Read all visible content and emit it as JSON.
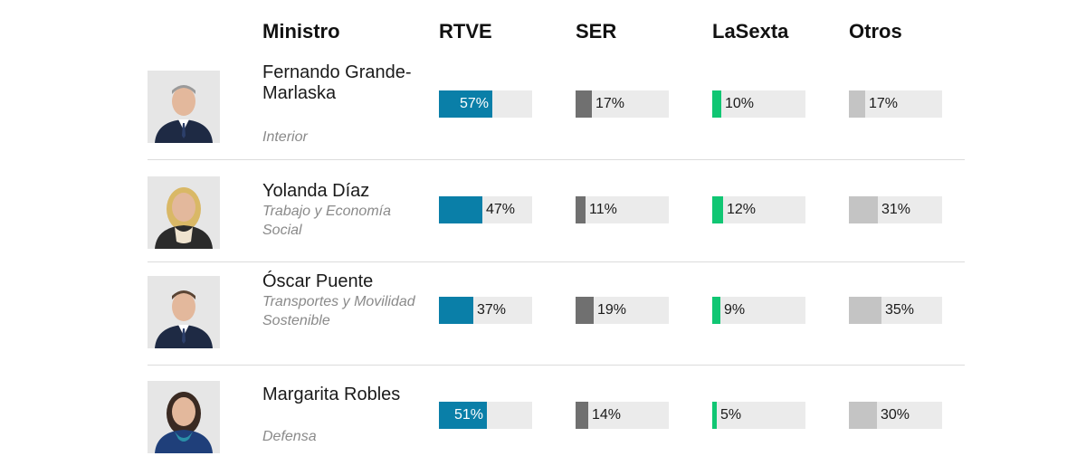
{
  "header": {
    "ministro": "Ministro",
    "columns": [
      "RTVE",
      "SER",
      "LaSexta",
      "Otros"
    ]
  },
  "colors": {
    "RTVE": "#0a7fa8",
    "SER": "#707070",
    "LaSexta": "#10c673",
    "Otros": "#c4c4c4",
    "track": "#ebebeb"
  },
  "ministers": [
    {
      "name": "Fernando Grande-Marlaska",
      "department": "Interior",
      "photo_icon": "man-portrait",
      "shares": {
        "RTVE": 57,
        "SER": 17,
        "LaSexta": 10,
        "Otros": 17
      },
      "labels": {
        "RTVE": "57%",
        "SER": "17%",
        "LaSexta": "10%",
        "Otros": "17%"
      }
    },
    {
      "name": "Yolanda Díaz",
      "department": "Trabajo y Economía Social",
      "photo_icon": "woman-portrait",
      "shares": {
        "RTVE": 47,
        "SER": 11,
        "LaSexta": 12,
        "Otros": 31
      },
      "labels": {
        "RTVE": "47%",
        "SER": "11%",
        "LaSexta": "12%",
        "Otros": "31%"
      }
    },
    {
      "name": "Óscar Puente",
      "department": "Transportes y Movilidad Sostenible",
      "photo_icon": "man-portrait",
      "shares": {
        "RTVE": 37,
        "SER": 19,
        "LaSexta": 9,
        "Otros": 35
      },
      "labels": {
        "RTVE": "37%",
        "SER": "19%",
        "LaSexta": "9%",
        "Otros": "35%"
      }
    },
    {
      "name": "Margarita Robles",
      "department": "Defensa",
      "photo_icon": "woman-portrait",
      "shares": {
        "RTVE": 51,
        "SER": 14,
        "LaSexta": 5,
        "Otros": 30
      },
      "labels": {
        "RTVE": "51%",
        "SER": "14%",
        "LaSexta": "5%",
        "Otros": "30%"
      }
    }
  ],
  "chart_data": {
    "type": "bar",
    "categories": [
      "Fernando Grande-Marlaska",
      "Yolanda Díaz",
      "Óscar Puente",
      "Margarita Robles"
    ],
    "series": [
      {
        "name": "RTVE",
        "values": [
          57,
          47,
          37,
          51
        ]
      },
      {
        "name": "SER",
        "values": [
          17,
          11,
          19,
          14
        ]
      },
      {
        "name": "LaSexta",
        "values": [
          10,
          12,
          9,
          5
        ]
      },
      {
        "name": "Otros",
        "values": [
          17,
          31,
          35,
          30
        ]
      }
    ],
    "ylim": [
      0,
      100
    ],
    "grid": false
  }
}
